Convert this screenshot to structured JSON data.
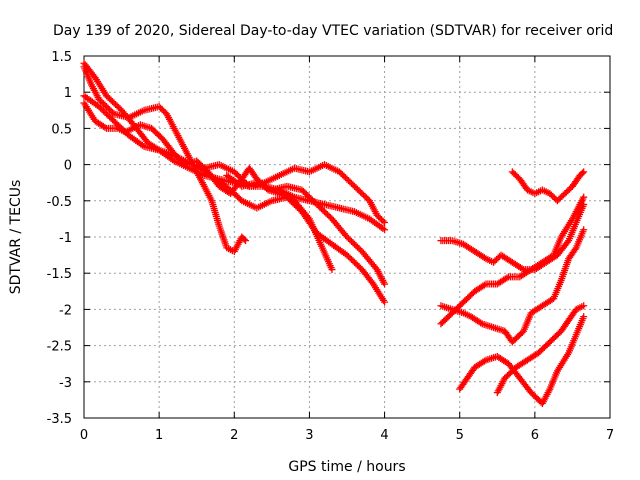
{
  "chart_data": {
    "type": "scatter",
    "title": "Day 139 of 2020, Sidereal Day-to-day VTEC variation (SDTVAR) for receiver orid",
    "xlabel": "GPS time / hours",
    "ylabel": "SDTVAR / TECUs",
    "xlim": [
      0,
      7
    ],
    "ylim": [
      -3.5,
      1.5
    ],
    "xticks": [
      "0",
      "1",
      "2",
      "3",
      "4",
      "5",
      "6",
      "7"
    ],
    "yticks": [
      "1.5",
      "1",
      "0.5",
      "0",
      "-0.5",
      "-1",
      "-1.5",
      "-2",
      "-2.5",
      "-3",
      "-3.5"
    ],
    "grid": true,
    "marker": "plus",
    "color": "#ff0000",
    "series": [
      {
        "name": "track-1",
        "points": [
          [
            0.0,
            1.4
          ],
          [
            0.15,
            1.2
          ],
          [
            0.3,
            0.95
          ],
          [
            0.5,
            0.75
          ],
          [
            0.7,
            0.5
          ],
          [
            0.85,
            0.3
          ],
          [
            1.0,
            0.2
          ],
          [
            1.2,
            0.05
          ],
          [
            1.4,
            -0.05
          ],
          [
            1.6,
            -0.15
          ],
          [
            1.8,
            -0.2
          ],
          [
            2.0,
            -0.25
          ],
          [
            2.2,
            -0.3
          ],
          [
            2.4,
            -0.3
          ],
          [
            2.6,
            -0.35
          ],
          [
            2.8,
            -0.45
          ],
          [
            3.0,
            -0.5
          ],
          [
            3.2,
            -0.55
          ],
          [
            3.4,
            -0.6
          ],
          [
            3.6,
            -0.65
          ],
          [
            3.8,
            -0.75
          ],
          [
            4.0,
            -0.9
          ]
        ]
      },
      {
        "name": "track-2",
        "points": [
          [
            0.0,
            1.35
          ],
          [
            0.1,
            1.1
          ],
          [
            0.2,
            0.9
          ],
          [
            0.4,
            0.7
          ],
          [
            0.6,
            0.65
          ],
          [
            0.8,
            0.75
          ],
          [
            1.0,
            0.8
          ],
          [
            1.1,
            0.7
          ],
          [
            1.25,
            0.4
          ],
          [
            1.4,
            0.1
          ],
          [
            1.5,
            -0.1
          ],
          [
            1.6,
            -0.3
          ],
          [
            1.7,
            -0.5
          ],
          [
            1.8,
            -0.85
          ],
          [
            1.9,
            -1.15
          ],
          [
            2.0,
            -1.2
          ],
          [
            2.1,
            -1.0
          ],
          [
            2.15,
            -1.05
          ]
        ]
      },
      {
        "name": "track-3",
        "points": [
          [
            0.0,
            0.85
          ],
          [
            0.15,
            0.6
          ],
          [
            0.3,
            0.5
          ],
          [
            0.45,
            0.5
          ],
          [
            0.55,
            0.45
          ],
          [
            0.65,
            0.5
          ],
          [
            0.75,
            0.55
          ],
          [
            0.9,
            0.5
          ],
          [
            1.05,
            0.35
          ],
          [
            1.2,
            0.15
          ],
          [
            1.35,
            0.0
          ],
          [
            1.5,
            0.05
          ],
          [
            1.65,
            -0.1
          ],
          [
            1.8,
            -0.3
          ],
          [
            1.95,
            -0.4
          ],
          [
            2.1,
            -0.2
          ],
          [
            2.2,
            -0.05
          ],
          [
            2.3,
            -0.2
          ],
          [
            2.45,
            -0.35
          ],
          [
            2.6,
            -0.4
          ],
          [
            2.8,
            -0.5
          ],
          [
            3.0,
            -0.75
          ],
          [
            3.15,
            -1.1
          ],
          [
            3.3,
            -1.45
          ]
        ]
      },
      {
        "name": "track-4",
        "points": [
          [
            0.0,
            0.95
          ],
          [
            0.2,
            0.8
          ],
          [
            0.4,
            0.6
          ],
          [
            0.6,
            0.4
          ],
          [
            0.8,
            0.25
          ],
          [
            1.0,
            0.2
          ],
          [
            1.15,
            0.15
          ],
          [
            1.35,
            0.05
          ],
          [
            1.55,
            -0.05
          ],
          [
            1.75,
            -0.2
          ],
          [
            1.95,
            -0.35
          ],
          [
            2.1,
            -0.5
          ],
          [
            2.3,
            -0.6
          ],
          [
            2.5,
            -0.5
          ],
          [
            2.7,
            -0.45
          ],
          [
            2.9,
            -0.65
          ],
          [
            3.1,
            -0.95
          ],
          [
            3.3,
            -1.1
          ],
          [
            3.5,
            -1.25
          ],
          [
            3.7,
            -1.45
          ],
          [
            3.85,
            -1.65
          ],
          [
            4.0,
            -1.9
          ]
        ]
      },
      {
        "name": "track-5",
        "points": [
          [
            1.6,
            -0.05
          ],
          [
            1.8,
            0.0
          ],
          [
            2.0,
            -0.1
          ],
          [
            2.2,
            -0.3
          ],
          [
            2.4,
            -0.25
          ],
          [
            2.6,
            -0.15
          ],
          [
            2.8,
            -0.05
          ],
          [
            3.0,
            -0.1
          ],
          [
            3.2,
            0.0
          ],
          [
            3.4,
            -0.1
          ],
          [
            3.6,
            -0.3
          ],
          [
            3.8,
            -0.5
          ],
          [
            3.9,
            -0.7
          ],
          [
            4.0,
            -0.8
          ]
        ]
      },
      {
        "name": "track-6",
        "points": [
          [
            1.9,
            -0.15
          ],
          [
            2.1,
            -0.3
          ],
          [
            2.3,
            -0.25
          ],
          [
            2.5,
            -0.35
          ],
          [
            2.7,
            -0.3
          ],
          [
            2.9,
            -0.35
          ],
          [
            3.1,
            -0.55
          ],
          [
            3.3,
            -0.75
          ],
          [
            3.5,
            -1.0
          ],
          [
            3.7,
            -1.2
          ],
          [
            3.9,
            -1.45
          ],
          [
            4.0,
            -1.65
          ]
        ]
      },
      {
        "name": "track-7",
        "points": [
          [
            4.75,
            -1.05
          ],
          [
            4.9,
            -1.05
          ],
          [
            5.05,
            -1.1
          ],
          [
            5.2,
            -1.2
          ],
          [
            5.35,
            -1.3
          ],
          [
            5.45,
            -1.35
          ],
          [
            5.55,
            -1.25
          ],
          [
            5.7,
            -1.35
          ],
          [
            5.85,
            -1.45
          ],
          [
            6.0,
            -1.45
          ],
          [
            6.15,
            -1.35
          ],
          [
            6.3,
            -1.25
          ],
          [
            6.45,
            -1.05
          ],
          [
            6.55,
            -0.8
          ],
          [
            6.65,
            -0.55
          ]
        ]
      },
      {
        "name": "track-8",
        "points": [
          [
            4.75,
            -2.2
          ],
          [
            4.9,
            -2.05
          ],
          [
            5.05,
            -1.9
          ],
          [
            5.2,
            -1.75
          ],
          [
            5.35,
            -1.65
          ],
          [
            5.5,
            -1.65
          ],
          [
            5.65,
            -1.55
          ],
          [
            5.8,
            -1.55
          ],
          [
            5.95,
            -1.45
          ],
          [
            6.1,
            -1.35
          ],
          [
            6.25,
            -1.25
          ],
          [
            6.35,
            -1.0
          ],
          [
            6.5,
            -0.75
          ],
          [
            6.6,
            -0.55
          ],
          [
            6.65,
            -0.45
          ]
        ]
      },
      {
        "name": "track-9",
        "points": [
          [
            4.75,
            -1.95
          ],
          [
            4.9,
            -2.0
          ],
          [
            5.05,
            -2.05
          ],
          [
            5.15,
            -2.1
          ],
          [
            5.3,
            -2.2
          ],
          [
            5.45,
            -2.25
          ],
          [
            5.6,
            -2.3
          ],
          [
            5.7,
            -2.45
          ],
          [
            5.85,
            -2.3
          ],
          [
            5.95,
            -2.05
          ],
          [
            6.1,
            -1.95
          ],
          [
            6.25,
            -1.85
          ],
          [
            6.35,
            -1.6
          ],
          [
            6.45,
            -1.3
          ],
          [
            6.55,
            -1.15
          ],
          [
            6.65,
            -0.9
          ]
        ]
      },
      {
        "name": "track-10",
        "points": [
          [
            5.0,
            -3.1
          ],
          [
            5.1,
            -2.95
          ],
          [
            5.2,
            -2.8
          ],
          [
            5.35,
            -2.7
          ],
          [
            5.5,
            -2.65
          ],
          [
            5.65,
            -2.75
          ],
          [
            5.8,
            -2.95
          ],
          [
            5.95,
            -3.15
          ],
          [
            6.1,
            -3.3
          ],
          [
            6.2,
            -3.1
          ],
          [
            6.3,
            -2.85
          ],
          [
            6.45,
            -2.6
          ],
          [
            6.55,
            -2.35
          ],
          [
            6.65,
            -2.1
          ]
        ]
      },
      {
        "name": "track-11",
        "points": [
          [
            5.5,
            -3.15
          ],
          [
            5.6,
            -2.95
          ],
          [
            5.75,
            -2.8
          ],
          [
            5.9,
            -2.7
          ],
          [
            6.05,
            -2.6
          ],
          [
            6.2,
            -2.45
          ],
          [
            6.35,
            -2.3
          ],
          [
            6.45,
            -2.15
          ],
          [
            6.55,
            -2.0
          ],
          [
            6.65,
            -1.95
          ]
        ]
      },
      {
        "name": "track-12",
        "points": [
          [
            5.7,
            -0.1
          ],
          [
            5.8,
            -0.2
          ],
          [
            5.9,
            -0.35
          ],
          [
            6.0,
            -0.4
          ],
          [
            6.1,
            -0.35
          ],
          [
            6.2,
            -0.4
          ],
          [
            6.3,
            -0.5
          ],
          [
            6.4,
            -0.4
          ],
          [
            6.5,
            -0.3
          ],
          [
            6.6,
            -0.15
          ],
          [
            6.65,
            -0.1
          ]
        ]
      }
    ]
  }
}
